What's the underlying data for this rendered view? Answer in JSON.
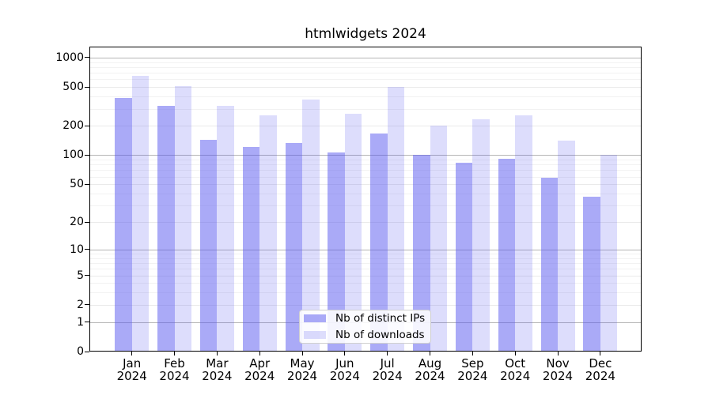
{
  "chart_data": {
    "type": "bar",
    "title": "htmlwidgets 2024",
    "x_year": "2024",
    "categories": [
      "Jan",
      "Feb",
      "Mar",
      "Apr",
      "May",
      "Jun",
      "Jul",
      "Aug",
      "Sep",
      "Oct",
      "Nov",
      "Dec"
    ],
    "series": [
      {
        "name": "Nb of distinct IPs",
        "color": "rgba(85,85,240,0.5)",
        "values": [
          390,
          322,
          145,
          121,
          134,
          106,
          166,
          101,
          84,
          92,
          58,
          37
        ]
      },
      {
        "name": "Nb of downloads",
        "color": "rgba(85,85,240,0.2)",
        "values": [
          655,
          515,
          322,
          257,
          370,
          266,
          498,
          201,
          234,
          257,
          141,
          101
        ]
      }
    ],
    "yscale": "log1p",
    "yticks": [
      0,
      1,
      2,
      5,
      10,
      20,
      50,
      100,
      200,
      500,
      1000
    ],
    "ylim": [
      0,
      1300
    ],
    "xlabel": "",
    "ylabel": "",
    "grid": true,
    "legend_position": "lower center",
    "colors": {
      "distinct_ips_rendered": "#aaaaf7",
      "downloads_rendered": "#ddddfc",
      "grid_major_pow10": "#b5b5b5",
      "grid_labeled": "#eaeaea",
      "grid_minor": "#f2f2f2",
      "spine": "#000000"
    }
  }
}
